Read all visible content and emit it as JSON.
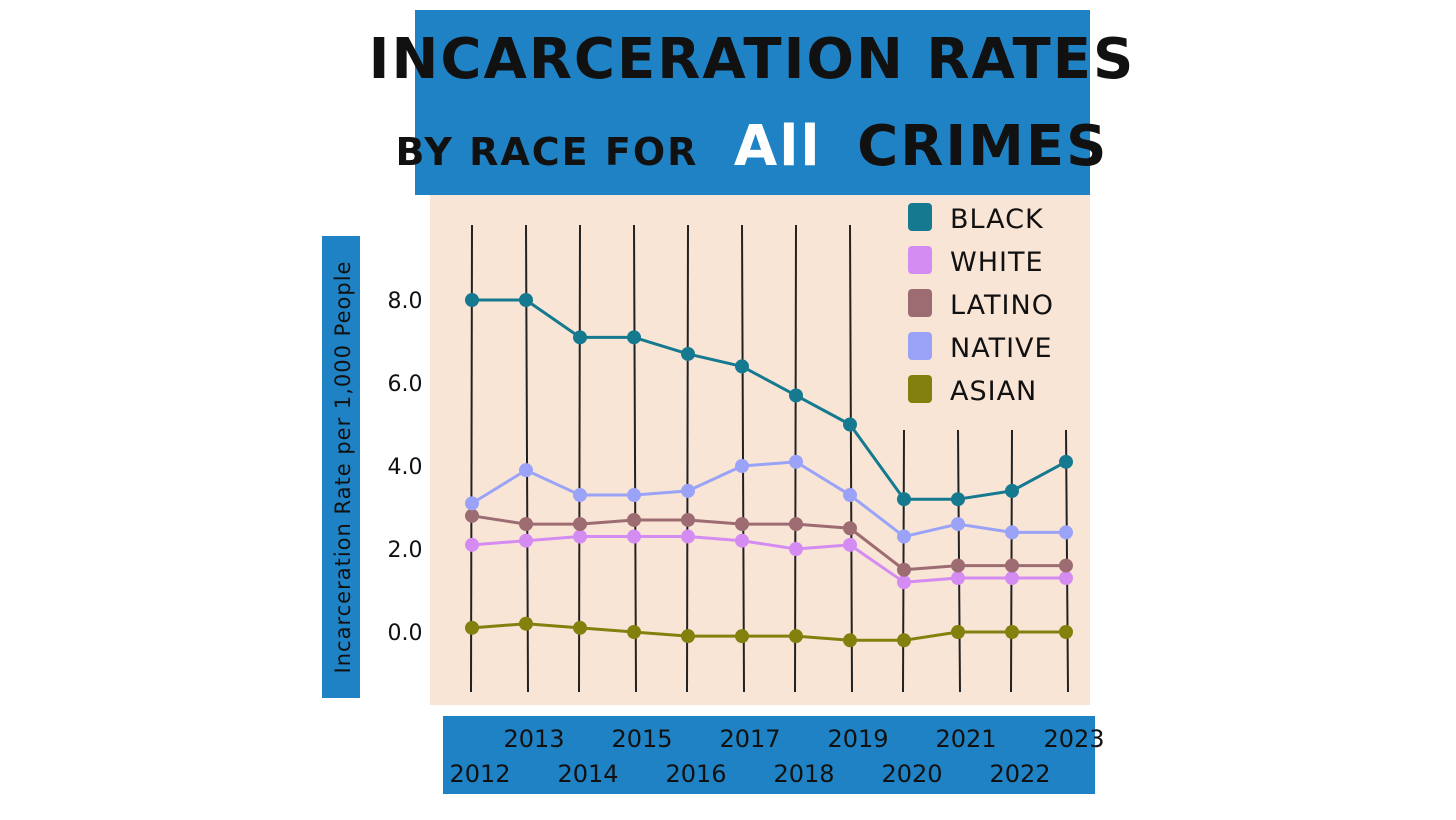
{
  "title": {
    "line1": "INCARCERATION RATES",
    "line2_before": "BY RACE FOR",
    "line2_emphasis": "All",
    "line2_after": "CRIMES"
  },
  "colors": {
    "banner": "#1f82c4",
    "plot_bg": "#f9e5d6",
    "grid": "#222222"
  },
  "chart_data": {
    "type": "line",
    "ylabel": "Incarceration Rate per 1,000 People",
    "yticks": [
      0,
      2,
      4,
      6,
      8
    ],
    "ytick_labels": [
      "0.0",
      "2.0",
      "4.0",
      "6.0",
      "8.0"
    ],
    "ylim": [
      -1.5,
      10
    ],
    "x": [
      "2012",
      "2013",
      "2014",
      "2015",
      "2016",
      "2017",
      "2018",
      "2019",
      "2020",
      "2021",
      "2022",
      "2023"
    ],
    "grid": true,
    "legend": "top-right",
    "series": [
      {
        "name": "BLACK",
        "color": "#157a8f",
        "values": [
          8.0,
          8.0,
          7.1,
          7.1,
          6.7,
          6.4,
          5.7,
          5.0,
          3.2,
          3.2,
          3.4,
          4.1
        ]
      },
      {
        "name": "WHITE",
        "color": "#d58cf2",
        "values": [
          2.1,
          2.2,
          2.3,
          2.3,
          2.3,
          2.2,
          2.0,
          2.1,
          1.2,
          1.3,
          1.3,
          1.3
        ]
      },
      {
        "name": "LATINO",
        "color": "#9c6c72",
        "values": [
          2.8,
          2.6,
          2.6,
          2.7,
          2.7,
          2.6,
          2.6,
          2.5,
          1.5,
          1.6,
          1.6,
          1.6
        ]
      },
      {
        "name": "NATIVE",
        "color": "#9aa3f7",
        "values": [
          3.1,
          3.9,
          3.3,
          3.3,
          3.4,
          4.0,
          4.1,
          3.3,
          2.3,
          2.6,
          2.4,
          2.4
        ]
      },
      {
        "name": "ASIAN",
        "color": "#84800e",
        "values": [
          0.1,
          0.2,
          0.1,
          0.0,
          -0.1,
          -0.1,
          -0.1,
          -0.2,
          -0.2,
          0.0,
          0.0,
          0.0
        ]
      }
    ]
  }
}
